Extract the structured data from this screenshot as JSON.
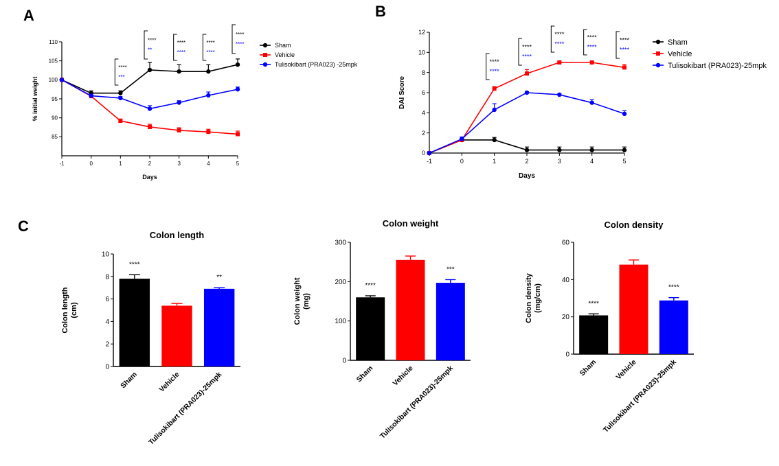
{
  "panel_labels": {
    "a": "A",
    "b": "B",
    "c": "C"
  },
  "colors": {
    "sham": "#000000",
    "vehicle": "#ff0000",
    "tulisokibart": "#0000ff"
  },
  "chart_data": [
    {
      "id": "A",
      "type": "line",
      "xlabel": "Days",
      "ylabel": "% initial weight",
      "x": [
        -1,
        0,
        1,
        2,
        3,
        4,
        5
      ],
      "xlim": [
        -1,
        5
      ],
      "ylim": [
        80,
        110
      ],
      "x_ticks": [
        "-1",
        "0",
        "1",
        "2",
        "3",
        "4",
        "5"
      ],
      "y_ticks": [
        "85",
        "90",
        "95",
        "100",
        "105",
        "110"
      ],
      "legend_position": "right",
      "series": [
        {
          "name": "Sham",
          "color": "#000000",
          "marker": "circle",
          "values": [
            100,
            96.5,
            96.5,
            102.6,
            102.2,
            102.2,
            104.0
          ],
          "errors": [
            0,
            0.6,
            0.6,
            2.0,
            1.8,
            1.8,
            1.5
          ]
        },
        {
          "name": "Vehicle",
          "color": "#ff0000",
          "marker": "square",
          "values": [
            100,
            95.7,
            89.2,
            87.6,
            86.7,
            86.3,
            85.7
          ],
          "errors": [
            0,
            0.4,
            0.5,
            0.7,
            0.7,
            0.7,
            0.8
          ]
        },
        {
          "name": "Tulisokibart (PRA023) -25mpk",
          "color": "#0000ff",
          "marker": "circle",
          "values": [
            100,
            95.8,
            95.2,
            92.4,
            94.0,
            95.9,
            97.5
          ],
          "errors": [
            0,
            0.4,
            0.4,
            0.8,
            0.5,
            0.9,
            0.6
          ]
        }
      ],
      "annotations": [
        {
          "day": 1,
          "top": "****",
          "bottom": "***"
        },
        {
          "day": 2,
          "top": "****",
          "bottom": "**"
        },
        {
          "day": 3,
          "top": "****",
          "bottom": "****"
        },
        {
          "day": 4,
          "top": "****",
          "bottom": "****"
        },
        {
          "day": 5,
          "top": "****",
          "bottom": "****"
        }
      ]
    },
    {
      "id": "B",
      "type": "line",
      "xlabel": "Days",
      "ylabel": "DAI Score",
      "x": [
        -1,
        0,
        1,
        2,
        3,
        4,
        5
      ],
      "xlim": [
        -1,
        5
      ],
      "ylim": [
        0,
        12
      ],
      "x_ticks": [
        "-1",
        "0",
        "1",
        "2",
        "3",
        "4",
        "5"
      ],
      "y_ticks": [
        "0",
        "2",
        "4",
        "6",
        "8",
        "10",
        "12"
      ],
      "legend_position": "right",
      "series": [
        {
          "name": "Sham",
          "color": "#000000",
          "marker": "circle",
          "values": [
            0,
            1.3,
            1.3,
            0.3,
            0.3,
            0.3,
            0.3
          ],
          "errors": [
            0,
            0.2,
            0.25,
            0.3,
            0.3,
            0.3,
            0.3
          ]
        },
        {
          "name": "Vehicle",
          "color": "#ff0000",
          "marker": "square",
          "values": [
            0,
            1.3,
            6.4,
            7.9,
            9.0,
            9.0,
            8.5
          ],
          "errors": [
            0,
            0.2,
            0.2,
            0.4,
            0.1,
            0.1,
            0.3
          ]
        },
        {
          "name": "Tulisokibart (PRA023)-25mpk",
          "color": "#0000ff",
          "marker": "circle",
          "values": [
            0,
            1.4,
            4.3,
            6.0,
            5.8,
            5.0,
            3.9
          ],
          "errors": [
            0,
            0.2,
            0.6,
            0.1,
            0.1,
            0.3,
            0.3
          ]
        }
      ],
      "annotations": [
        {
          "day": 1,
          "top": "****",
          "bottom": "****"
        },
        {
          "day": 2,
          "top": "****",
          "bottom": "****"
        },
        {
          "day": 3,
          "top": "****",
          "bottom": "****"
        },
        {
          "day": 4,
          "top": "****",
          "bottom": "****"
        },
        {
          "day": 5,
          "top": "****",
          "bottom": "****"
        }
      ]
    },
    {
      "id": "C1",
      "type": "bar",
      "title": "Colon length",
      "ylabel": "Colon length\n(cm)",
      "categories": [
        "Sham",
        "Vehicle",
        "Tulisokibart (PRA023)-25mpk"
      ],
      "values": [
        7.8,
        5.4,
        6.9
      ],
      "errors": [
        0.35,
        0.2,
        0.1
      ],
      "significance": [
        "****",
        "",
        "**"
      ],
      "colors": [
        "#000000",
        "#ff0000",
        "#0000ff"
      ],
      "ylim": [
        0,
        10
      ],
      "y_ticks": [
        "0",
        "2",
        "4",
        "6",
        "8",
        "10"
      ]
    },
    {
      "id": "C2",
      "type": "bar",
      "title": "Colon weight",
      "ylabel": "Colon weight\n(mg)",
      "categories": [
        "Sham",
        "Vehicle",
        "Tulisokibart (PRA023)-25mpk"
      ],
      "values": [
        160,
        255,
        197
      ],
      "errors": [
        4,
        10,
        8
      ],
      "significance": [
        "****",
        "",
        "***"
      ],
      "colors": [
        "#000000",
        "#ff0000",
        "#0000ff"
      ],
      "ylim": [
        0,
        300
      ],
      "y_ticks": [
        "0",
        "100",
        "200",
        "300"
      ]
    },
    {
      "id": "C3",
      "type": "bar",
      "title": "Colon density",
      "ylabel": "Colon density\n(mg/cm)",
      "categories": [
        "Sham",
        "Vehicle",
        "Tulisokibart (PRA023)-25mpk"
      ],
      "values": [
        20.8,
        48.0,
        28.8
      ],
      "errors": [
        0.8,
        2.5,
        1.5
      ],
      "significance": [
        "****",
        "",
        "****"
      ],
      "colors": [
        "#000000",
        "#ff0000",
        "#0000ff"
      ],
      "ylim": [
        0,
        60
      ],
      "y_ticks": [
        "0",
        "20",
        "40",
        "60"
      ]
    }
  ]
}
